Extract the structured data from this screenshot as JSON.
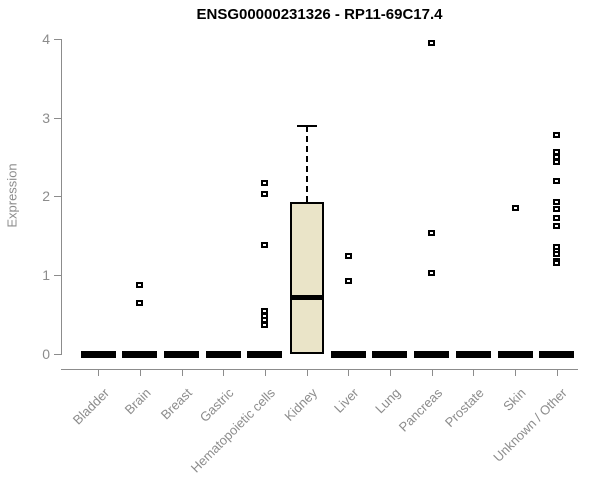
{
  "chart_data": {
    "type": "boxplot",
    "title": "ENSG00000231326 - RP11-69C17.4",
    "ylabel": "Expression",
    "ylim": [
      0,
      4
    ],
    "yticks": [
      0,
      1,
      2,
      3,
      4
    ],
    "grid": false,
    "legend": false,
    "categories": [
      "Bladder",
      "Brain",
      "Breast",
      "Gastric",
      "Hematopoietic cells",
      "Kidney",
      "Liver",
      "Lung",
      "Pancreas",
      "Prostate",
      "Skin",
      "Unknown / Other"
    ],
    "series": [
      {
        "category": "Bladder",
        "box": {
          "q1": 0,
          "median": 0,
          "q3": 0,
          "whisker_low": 0,
          "whisker_high": 0
        },
        "outliers": []
      },
      {
        "category": "Brain",
        "box": {
          "q1": 0,
          "median": 0,
          "q3": 0,
          "whisker_low": 0,
          "whisker_high": 0
        },
        "outliers": [
          0.88,
          0.65
        ]
      },
      {
        "category": "Breast",
        "box": {
          "q1": 0,
          "median": 0,
          "q3": 0,
          "whisker_low": 0,
          "whisker_high": 0
        },
        "outliers": []
      },
      {
        "category": "Gastric",
        "box": {
          "q1": 0,
          "median": 0,
          "q3": 0,
          "whisker_low": 0,
          "whisker_high": 0
        },
        "outliers": []
      },
      {
        "category": "Hematopoietic cells",
        "box": {
          "q1": 0,
          "median": 0,
          "q3": 0,
          "whisker_low": 0,
          "whisker_high": 0
        },
        "outliers": [
          2.17,
          2.03,
          1.38,
          0.54,
          0.48,
          0.43,
          0.37
        ]
      },
      {
        "category": "Kidney",
        "box": {
          "q1": 0,
          "median": 0.72,
          "q3": 1.93,
          "whisker_low": 0,
          "whisker_high": 2.89
        },
        "outliers": []
      },
      {
        "category": "Liver",
        "box": {
          "q1": 0,
          "median": 0,
          "q3": 0,
          "whisker_low": 0,
          "whisker_high": 0
        },
        "outliers": [
          1.24,
          0.93
        ]
      },
      {
        "category": "Lung",
        "box": {
          "q1": 0,
          "median": 0,
          "q3": 0,
          "whisker_low": 0,
          "whisker_high": 0
        },
        "outliers": []
      },
      {
        "category": "Pancreas",
        "box": {
          "q1": 0,
          "median": 0,
          "q3": 0,
          "whisker_low": 0,
          "whisker_high": 0
        },
        "outliers": [
          3.94,
          1.54,
          1.03
        ]
      },
      {
        "category": "Prostate",
        "box": {
          "q1": 0,
          "median": 0,
          "q3": 0,
          "whisker_low": 0,
          "whisker_high": 0
        },
        "outliers": []
      },
      {
        "category": "Skin",
        "box": {
          "q1": 0,
          "median": 0,
          "q3": 0,
          "whisker_low": 0,
          "whisker_high": 0
        },
        "outliers": [
          1.85
        ]
      },
      {
        "category": "Unknown / Other",
        "box": {
          "q1": 0,
          "median": 0,
          "q3": 0,
          "whisker_low": 0,
          "whisker_high": 0
        },
        "outliers": [
          2.78,
          2.56,
          2.5,
          2.44,
          2.19,
          1.93,
          1.84,
          1.73,
          1.62,
          1.36,
          1.31,
          1.27,
          1.18,
          1.15
        ]
      }
    ],
    "colors": {
      "box_fill": "#EAE4C8",
      "box_border": "#000000",
      "median": "#000000",
      "outlier": "#000000",
      "axis": "#8C8C8C",
      "tick_label": "#8C8C8C",
      "title": "#000000"
    }
  }
}
